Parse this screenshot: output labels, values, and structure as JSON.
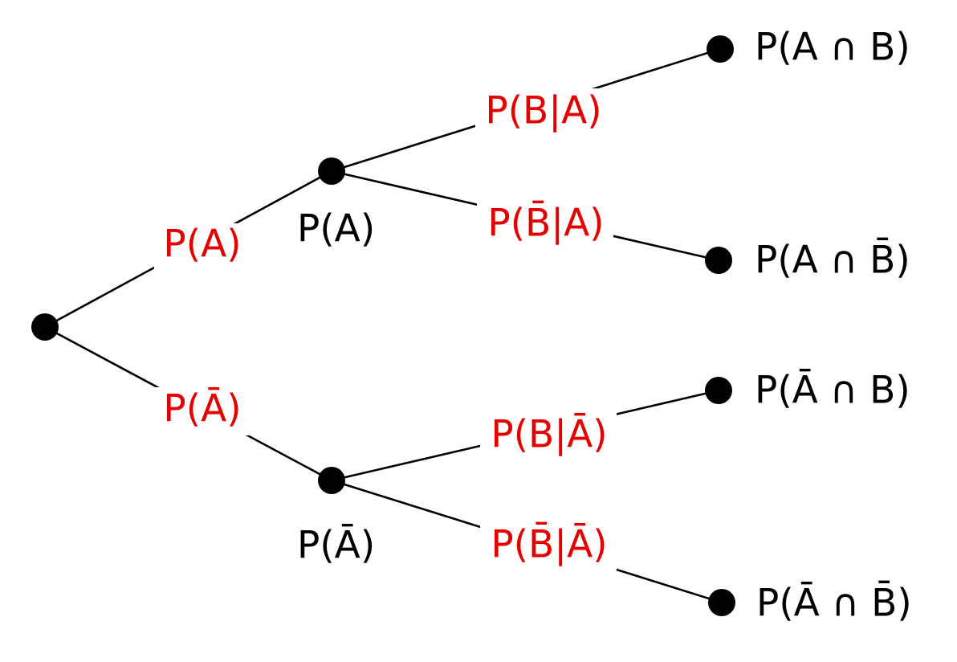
{
  "diagram": {
    "type": "probability-tree",
    "colors": {
      "edge_label": "#e50000",
      "node_label": "#000000",
      "line": "#000000"
    },
    "edge_labels": {
      "a": "P(A)",
      "not_a": "P(Ā)",
      "b_given_a": "P(B|A)",
      "not_b_given_a": "P(B̄|A)",
      "b_given_not_a": "P(B|Ā)",
      "not_b_given_not_a": "P(B̄|Ā)"
    },
    "node_labels": {
      "a": "P(A)",
      "not_a": "P(Ā)"
    },
    "outcomes": {
      "a_and_b": "P(A ∩ B)",
      "a_and_not_b": "P(A ∩ B̄)",
      "not_a_and_b": "P(Ā ∩ B)",
      "not_a_and_not_b": "P(Ā ∩ B̄)"
    }
  }
}
